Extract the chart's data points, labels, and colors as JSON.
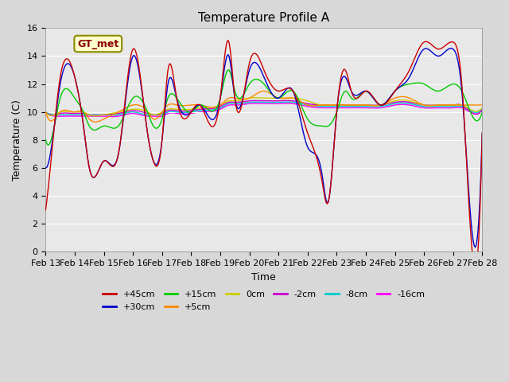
{
  "title": "Temperature Profile A",
  "xlabel": "Time",
  "ylabel": "Temperature (C)",
  "ylim": [
    0,
    16
  ],
  "yticks": [
    0,
    2,
    4,
    6,
    8,
    10,
    12,
    14,
    16
  ],
  "date_labels": [
    "Feb 13",
    "Feb 14",
    "Feb 15",
    "Feb 16",
    "Feb 17",
    "Feb 18",
    "Feb 19",
    "Feb 20",
    "Feb 21",
    "Feb 22",
    "Feb 23",
    "Feb 24",
    "Feb 25",
    "Feb 26",
    "Feb 27",
    "Feb 28"
  ],
  "series_names": [
    "+45cm",
    "+30cm",
    "+15cm",
    "+5cm",
    "0cm",
    "-2cm",
    "-8cm",
    "-16cm"
  ],
  "series_colors": [
    "#cc0000",
    "#0000cc",
    "#00cc00",
    "#ff8800",
    "#cccc00",
    "#cc00cc",
    "#00cccc",
    "#ff00ff"
  ],
  "legend_label": "GT_met",
  "bg_color": "#d8d8d8",
  "plot_bg_color": "#e8e8e8"
}
